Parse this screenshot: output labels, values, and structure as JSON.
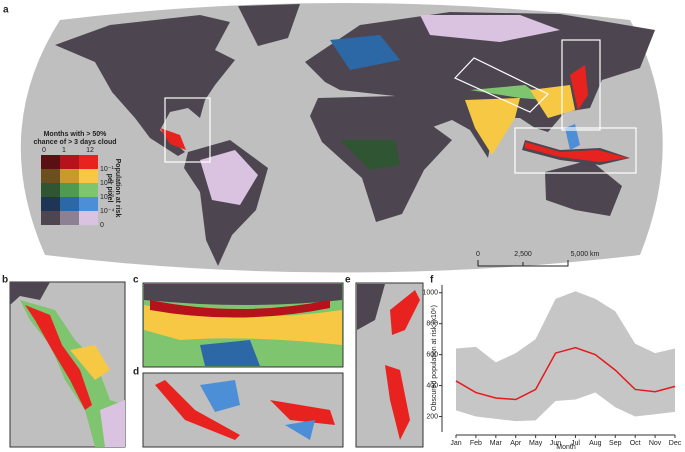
{
  "panel_labels": [
    "a",
    "b",
    "c",
    "d",
    "e",
    "f"
  ],
  "legend": {
    "title": [
      "Months with > 50%",
      "chance of > 3 days cloud"
    ],
    "month_labels": [
      "0",
      "1",
      "12"
    ],
    "population_title": [
      "Population at risk",
      "per pixel"
    ],
    "population_labels": [
      "10⁻¹",
      "10⁻²",
      "10⁻³",
      "10⁻⁴",
      "0"
    ],
    "colors": [
      [
        "#5a0f12",
        "#b5121b",
        "#e8231f"
      ],
      [
        "#6b4f1f",
        "#c79a2b",
        "#f6c843"
      ],
      [
        "#2f5533",
        "#4e9a50",
        "#7fc46f"
      ],
      [
        "#1f3556",
        "#2c68a6",
        "#4d8fd6"
      ],
      [
        "#4d4650",
        "#8c8092",
        "#d9c3e1"
      ]
    ]
  },
  "scale_bar": {
    "labels": [
      "0",
      "2,500",
      "5,000 km"
    ]
  },
  "chart_data": {
    "type": "line",
    "xlabel": "Month",
    "ylabel": "Obscured population at risk (x10⁶)",
    "categories": [
      "Jan",
      "Feb",
      "Mar",
      "Apr",
      "May",
      "Jun",
      "Jul",
      "Aug",
      "Sep",
      "Oct",
      "Nov",
      "Dec"
    ],
    "values": [
      430,
      355,
      320,
      310,
      375,
      610,
      645,
      600,
      500,
      375,
      360,
      395
    ],
    "upper": [
      640,
      650,
      550,
      610,
      700,
      960,
      1010,
      960,
      880,
      670,
      610,
      640
    ],
    "lower": [
      240,
      200,
      185,
      170,
      175,
      300,
      310,
      355,
      260,
      200,
      215,
      230
    ],
    "color": "#e41a1c",
    "band_color": "#c6c6c6",
    "ylim": [
      100,
      1050
    ],
    "yticks": [
      200,
      400,
      600,
      800,
      1000
    ]
  }
}
